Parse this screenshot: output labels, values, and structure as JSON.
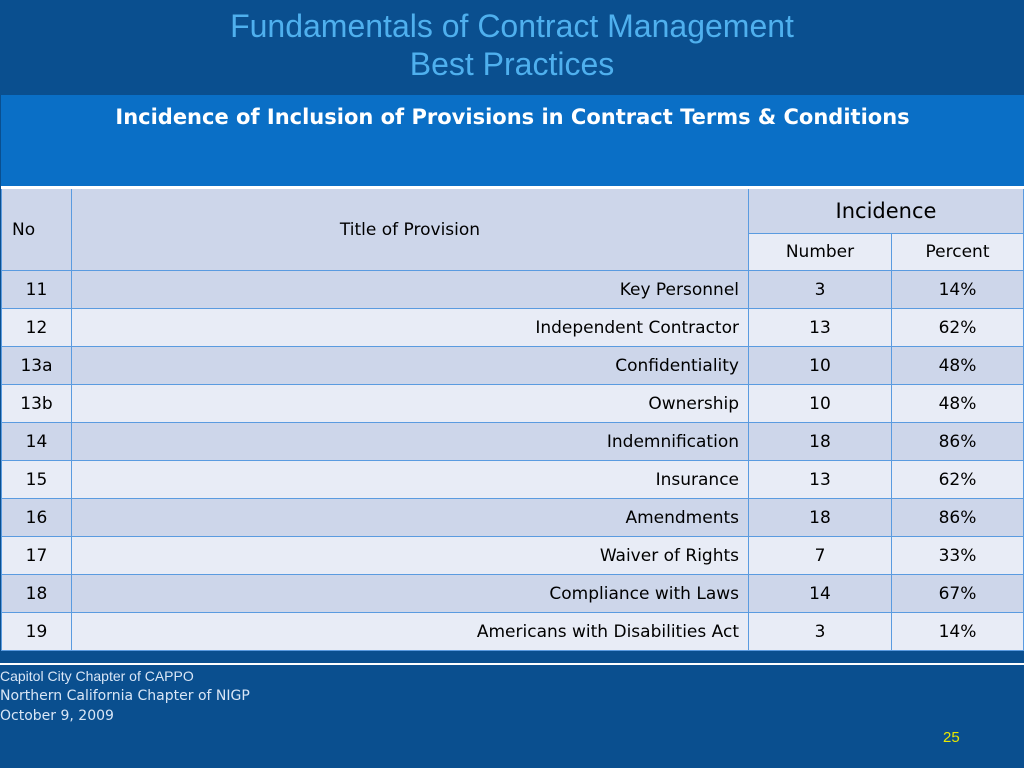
{
  "slide": {
    "title_line1": "Fundamentals of Contract Management",
    "title_line2": "Best Practices"
  },
  "table": {
    "caption": "Incidence of Inclusion of Provisions in Contract Terms  & Conditions",
    "headers": {
      "no": "No",
      "title": "Title of Provision",
      "incidence": "Incidence",
      "number": "Number",
      "percent": "Percent"
    },
    "rows": [
      {
        "no": "11",
        "title": "Key Personnel",
        "number": "3",
        "percent": "14%"
      },
      {
        "no": "12",
        "title": "Independent Contractor",
        "number": "13",
        "percent": "62%"
      },
      {
        "no": "13a",
        "title": "Confidentiality",
        "number": "10",
        "percent": "48%"
      },
      {
        "no": "13b",
        "title": "Ownership",
        "number": "10",
        "percent": "48%"
      },
      {
        "no": "14",
        "title": "Indemnification",
        "number": "18",
        "percent": "86%"
      },
      {
        "no": "15",
        "title": "Insurance",
        "number": "13",
        "percent": "62%"
      },
      {
        "no": "16",
        "title": "Amendments",
        "number": "18",
        "percent": "86%"
      },
      {
        "no": "17",
        "title": "Waiver of Rights",
        "number": "7",
        "percent": "33%"
      },
      {
        "no": "18",
        "title": "Compliance with Laws",
        "number": "14",
        "percent": "67%"
      },
      {
        "no": "19",
        "title": "Americans with Disabilities Act",
        "number": "3",
        "percent": "14%"
      }
    ]
  },
  "footer": {
    "line1": "Capitol City Chapter of CAPPO",
    "line2": "Northern California Chapter of NIGP",
    "line3": "October 9, 2009",
    "page_number": "25"
  },
  "colors": {
    "background": "#0a4f8f",
    "title": "#4fb0ee",
    "caption_bg": "#0a6fc6",
    "row_dark": "#cdd6ea",
    "row_light": "#e8ecf6",
    "page_number": "#e8e800"
  }
}
